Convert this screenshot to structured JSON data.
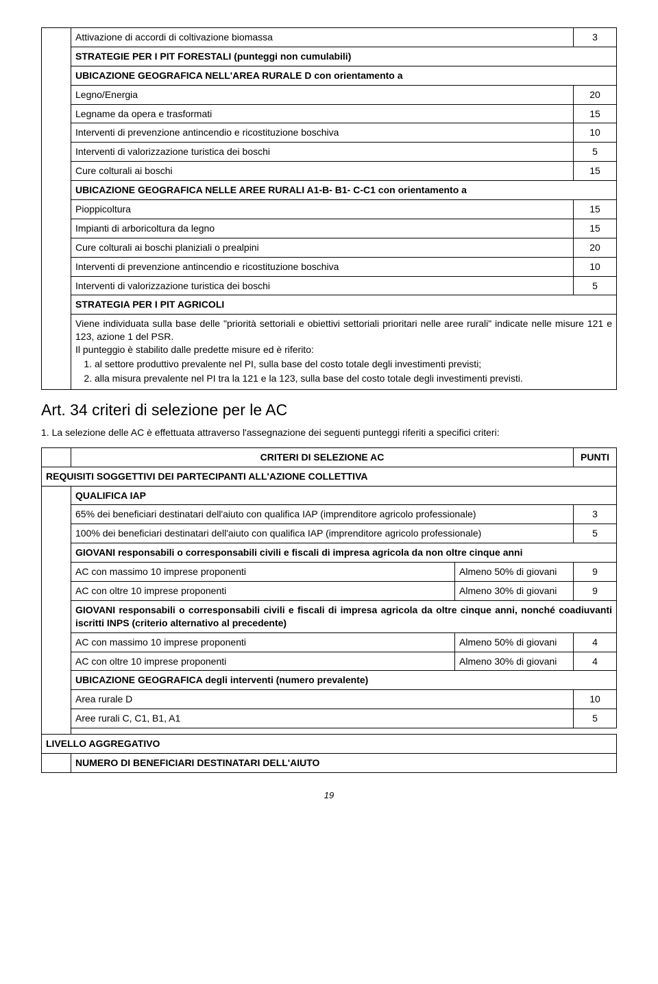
{
  "table1": {
    "r1": {
      "label": "Attivazione di accordi di coltivazione biomassa",
      "val": "3"
    },
    "r2": {
      "label": "STRATEGIE PER I PIT FORESTALI (punteggi non cumulabili)"
    },
    "r3": {
      "label": "UBICAZIONE GEOGRAFICA NELL'AREA RURALE D con orientamento a"
    },
    "r4": {
      "label": "Legno/Energia",
      "val": "20"
    },
    "r5": {
      "label": "Legname da opera e trasformati",
      "val": "15"
    },
    "r6": {
      "label": "Interventi di prevenzione antincendio e ricostituzione boschiva",
      "val": "10"
    },
    "r7": {
      "label": "Interventi di valorizzazione turistica dei boschi",
      "val": "5"
    },
    "r8": {
      "label": "Cure colturali ai boschi",
      "val": "15"
    },
    "r9": {
      "label": "UBICAZIONE GEOGRAFICA NELLE AREE RURALI A1-B- B1- C-C1 con orientamento a"
    },
    "r10": {
      "label": "Pioppicoltura",
      "val": "15"
    },
    "r11": {
      "label": "Impianti di arboricoltura da legno",
      "val": "15"
    },
    "r12": {
      "label": "Cure colturali ai boschi planiziali o prealpini",
      "val": "20"
    },
    "r13": {
      "label": "Interventi di prevenzione antincendio e ricostituzione boschiva",
      "val": "10"
    },
    "r14": {
      "label": "Interventi di valorizzazione turistica dei boschi",
      "val": "5"
    },
    "r15": {
      "label": "STRATEGIA PER I PIT AGRICOLI"
    },
    "strategy_text": {
      "p1": "Viene individuata sulla base delle \"priorità settoriali e obiettivi settoriali prioritari nelle aree rurali\" indicate nelle misure 121 e 123, azione 1 del PSR.",
      "p2": "Il punteggio è stabilito dalle predette misure ed è riferito:",
      "li1": "al settore produttivo prevalente nel PI, sulla base del costo totale degli investimenti previsti;",
      "li2": "alla misura prevalente nel PI tra la 121 e la 123, sulla base del costo totale degli investimenti previsti."
    }
  },
  "heading": "Art. 34 criteri di selezione per le AC",
  "intro": "La selezione delle AC è effettuata attraverso l'assegnazione dei seguenti punteggi riferiti a specifici criteri:",
  "intro_num": "1.",
  "table2": {
    "header": {
      "c1": "CRITERI DI SELEZIONE AC",
      "c2": "PUNTI"
    },
    "sec1": "REQUISITI SOGGETTIVI DEI PARTECIPANTI ALL'AZIONE COLLETTIVA",
    "q1": {
      "label": "QUALIFICA IAP"
    },
    "q2": {
      "label": "65% dei beneficiari destinatari dell'aiuto con qualifica IAP (imprenditore agricolo professionale)",
      "val": "3"
    },
    "q3": {
      "label": "100% dei beneficiari destinatari dell'aiuto con qualifica IAP (imprenditore agricolo professionale)",
      "val": "5"
    },
    "g1": {
      "label": "GIOVANI responsabili o corresponsabili civili e fiscali di impresa agricola da non oltre cinque anni"
    },
    "g2": {
      "c1": "AC con massimo 10 imprese proponenti",
      "c2": "Almeno 50% di giovani",
      "val": "9"
    },
    "g3": {
      "c1": "AC con oltre 10 imprese proponenti",
      "c2": "Almeno 30% di giovani",
      "val": "9"
    },
    "g4": {
      "label": "GIOVANI responsabili o corresponsabili civili e fiscali di impresa agricola da oltre cinque anni, nonché coadiuvanti iscritti INPS (criterio alternativo al precedente)"
    },
    "g5": {
      "c1": "AC con massimo 10 imprese proponenti",
      "c2": "Almeno 50% di giovani",
      "val": "4"
    },
    "g6": {
      "c1": "AC con oltre 10 imprese proponenti",
      "c2": "Almeno 30% di giovani",
      "val": "4"
    },
    "u1": {
      "label": "UBICAZIONE GEOGRAFICA degli interventi (numero prevalente)"
    },
    "u2": {
      "label": "Area rurale D",
      "val": "10"
    },
    "u3": {
      "label": "Aree rurali C, C1, B1, A1",
      "val": "5"
    },
    "sec2": "LIVELLO AGGREGATIVO",
    "n1": {
      "label": "NUMERO DI BENEFICIARI DESTINATARI DELL'AIUTO"
    }
  },
  "pagenum": "19"
}
